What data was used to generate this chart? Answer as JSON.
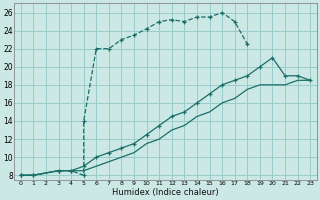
{
  "xlabel": "Humidex (Indice chaleur)",
  "bg_color": "#cce8e4",
  "grid_color": "#99cccc",
  "line_color": "#1a6e6a",
  "xlim": [
    -0.5,
    23.5
  ],
  "ylim": [
    7.5,
    27
  ],
  "xticks": [
    0,
    1,
    2,
    3,
    4,
    5,
    6,
    7,
    8,
    9,
    10,
    11,
    12,
    13,
    14,
    15,
    16,
    17,
    18,
    19,
    20,
    21,
    22,
    23
  ],
  "yticks": [
    8,
    10,
    12,
    14,
    16,
    18,
    20,
    22,
    24,
    26
  ],
  "line1_x": [
    0,
    1,
    3,
    4,
    5,
    5,
    6,
    7,
    8,
    9,
    10,
    11,
    12,
    13,
    14,
    15,
    16,
    17,
    18
  ],
  "line1_y": [
    8,
    8,
    8.5,
    8.5,
    8.0,
    14.0,
    22,
    22,
    23,
    23.5,
    24.2,
    25,
    25.2,
    25.0,
    25.5,
    25.5,
    26,
    25,
    22.5
  ],
  "line2_x": [
    0,
    1,
    3,
    4,
    5,
    6,
    7,
    8,
    9,
    10,
    11,
    12,
    13,
    14,
    15,
    16,
    17,
    18,
    19,
    20,
    21,
    22,
    23
  ],
  "line2_y": [
    8,
    8,
    8.5,
    8.5,
    9.0,
    10.0,
    10.5,
    11.0,
    11.5,
    12.5,
    13.5,
    14.5,
    15.0,
    16.0,
    17.0,
    18.0,
    18.5,
    19.0,
    20.0,
    21.0,
    19.0,
    19.0,
    18.5
  ],
  "line3_x": [
    0,
    1,
    3,
    4,
    5,
    6,
    7,
    8,
    9,
    10,
    11,
    12,
    13,
    14,
    15,
    16,
    17,
    18,
    19,
    20,
    21,
    22,
    23
  ],
  "line3_y": [
    8,
    8,
    8.5,
    8.5,
    8.5,
    9.0,
    9.5,
    10.0,
    10.5,
    11.5,
    12.0,
    13.0,
    13.5,
    14.5,
    15.0,
    16.0,
    16.5,
    17.5,
    18.0,
    18.0,
    18.0,
    18.5,
    18.5
  ]
}
